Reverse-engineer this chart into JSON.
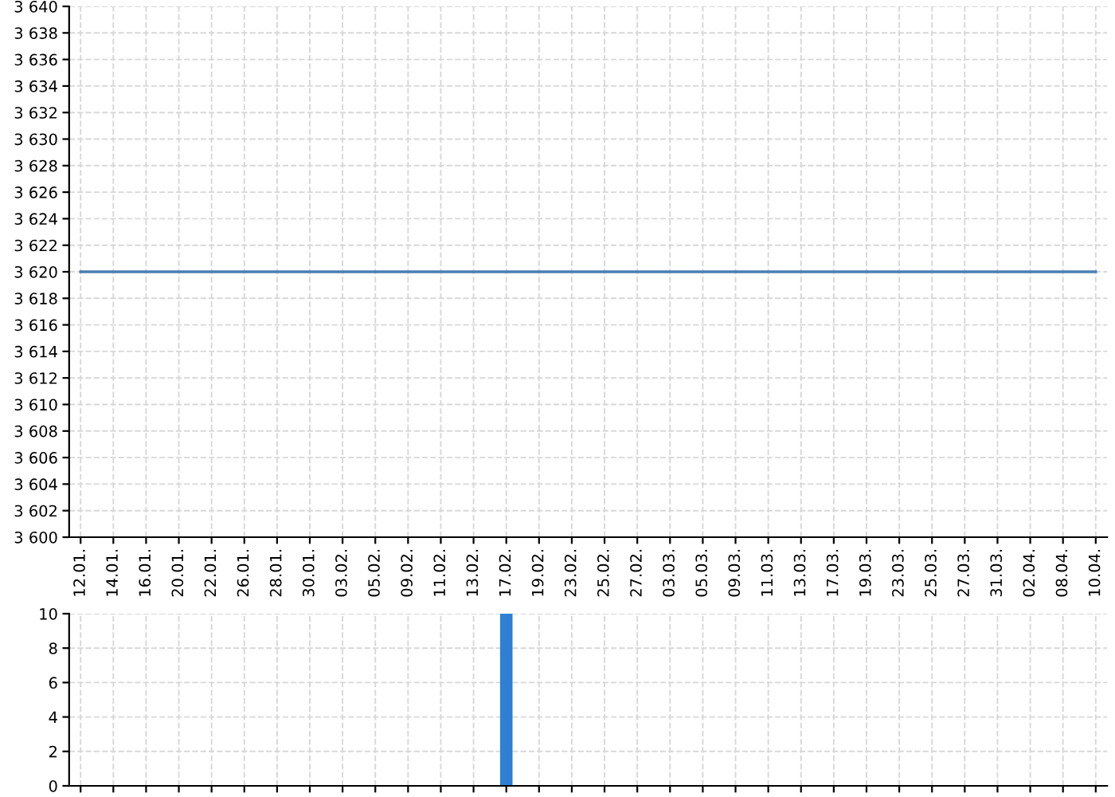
{
  "chart_data": [
    {
      "type": "line",
      "categories": [
        "12.01.",
        "14.01.",
        "16.01.",
        "20.01.",
        "22.01.",
        "26.01.",
        "28.01.",
        "30.01.",
        "03.02.",
        "05.02.",
        "09.02.",
        "11.02.",
        "13.02.",
        "17.02.",
        "19.02.",
        "23.02.",
        "25.02.",
        "27.02.",
        "03.03.",
        "05.03.",
        "09.03.",
        "11.03.",
        "13.03.",
        "17.03.",
        "19.03.",
        "23.03.",
        "25.03.",
        "27.03.",
        "31.03.",
        "02.04.",
        "08.04.",
        "10.04."
      ],
      "series": [
        {
          "color": "#4a7db5",
          "values": [
            3620,
            3620,
            3620,
            3620,
            3620,
            3620,
            3620,
            3620,
            3620,
            3620,
            3620,
            3620,
            3620,
            3620,
            3620,
            3620,
            3620,
            3620,
            3620,
            3620,
            3620,
            3620,
            3620,
            3620,
            3620,
            3620,
            3620,
            3620,
            3620,
            3620,
            3620,
            3620
          ]
        }
      ],
      "ylim": [
        3600,
        3640
      ],
      "yticks": [
        {
          "value": 3600,
          "label": "3 600"
        },
        {
          "value": 3602,
          "label": "3 602"
        },
        {
          "value": 3604,
          "label": "3 604"
        },
        {
          "value": 3606,
          "label": "3 606"
        },
        {
          "value": 3608,
          "label": "3 608"
        },
        {
          "value": 3610,
          "label": "3 610"
        },
        {
          "value": 3612,
          "label": "3 612"
        },
        {
          "value": 3614,
          "label": "3 614"
        },
        {
          "value": 3616,
          "label": "3 616"
        },
        {
          "value": 3618,
          "label": "3 618"
        },
        {
          "value": 3620,
          "label": "3 620"
        },
        {
          "value": 3622,
          "label": "3 622"
        },
        {
          "value": 3624,
          "label": "3 624"
        },
        {
          "value": 3626,
          "label": "3 626"
        },
        {
          "value": 3628,
          "label": "3 628"
        },
        {
          "value": 3630,
          "label": "3 630"
        },
        {
          "value": 3632,
          "label": "3 632"
        },
        {
          "value": 3634,
          "label": "3 634"
        },
        {
          "value": 3636,
          "label": "3 636"
        },
        {
          "value": 3638,
          "label": "3 638"
        },
        {
          "value": 3640,
          "label": "3 640"
        }
      ],
      "grid": true,
      "legend": false
    },
    {
      "type": "bar",
      "categories": [
        "12.01.",
        "14.01.",
        "16.01.",
        "20.01.",
        "22.01.",
        "26.01.",
        "28.01.",
        "30.01.",
        "03.02.",
        "05.02.",
        "09.02.",
        "11.02.",
        "13.02.",
        "17.02.",
        "19.02.",
        "23.02.",
        "25.02.",
        "27.02.",
        "03.03.",
        "05.03.",
        "09.03.",
        "11.03.",
        "13.03.",
        "17.03.",
        "19.03.",
        "23.03.",
        "25.03.",
        "27.03.",
        "31.03.",
        "02.04.",
        "08.04.",
        "10.04."
      ],
      "series": [
        {
          "color": "#2f80d4",
          "values": [
            0,
            0,
            0,
            0,
            0,
            0,
            0,
            0,
            0,
            0,
            0,
            0,
            0,
            10,
            0,
            0,
            0,
            0,
            0,
            0,
            0,
            0,
            0,
            0,
            0,
            0,
            0,
            0,
            0,
            0,
            0,
            0
          ]
        }
      ],
      "ylim": [
        0,
        10
      ],
      "yticks": [
        0,
        2,
        4,
        6,
        8,
        10
      ],
      "grid": true,
      "legend": false,
      "tick_labels": "y"
    }
  ]
}
